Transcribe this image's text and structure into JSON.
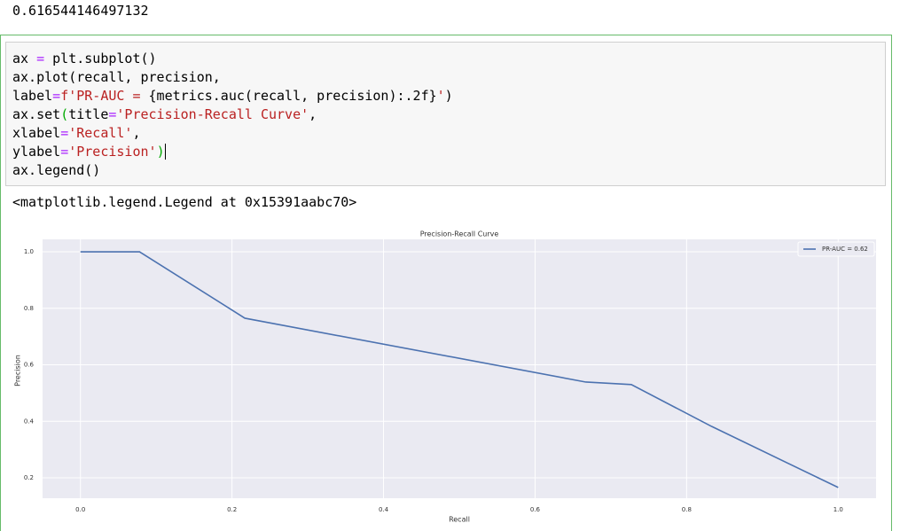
{
  "output_top": "0.616544146497132",
  "code_lines": [
    [
      {
        "text": "ax ",
        "color": "#000000"
      },
      {
        "text": "=",
        "color": "#aa22ff"
      },
      {
        "text": " plt.subplot()",
        "color": "#000000"
      }
    ],
    [
      {
        "text": "ax.plot(recall, precision,",
        "color": "#000000"
      }
    ],
    [
      {
        "text": "label",
        "color": "#000000"
      },
      {
        "text": "=",
        "color": "#aa22ff"
      },
      {
        "text": "f'PR-AUC = ",
        "color": "#ba2121"
      },
      {
        "text": "{metrics.auc(recall, precision):.2f}",
        "color": "#000000"
      },
      {
        "text": "'",
        "color": "#ba2121"
      },
      {
        "text": ")",
        "color": "#000000"
      }
    ],
    [
      {
        "text": "ax.set",
        "color": "#000000"
      },
      {
        "text": "(",
        "color": "#00aa00"
      },
      {
        "text": "title",
        "color": "#000000"
      },
      {
        "text": "=",
        "color": "#aa22ff"
      },
      {
        "text": "'Precision-Recall Curve'",
        "color": "#ba2121"
      },
      {
        "text": ",",
        "color": "#000000"
      }
    ],
    [
      {
        "text": "xlabel",
        "color": "#000000"
      },
      {
        "text": "=",
        "color": "#aa22ff"
      },
      {
        "text": "'Recall'",
        "color": "#ba2121"
      },
      {
        "text": ",",
        "color": "#000000"
      }
    ],
    [
      {
        "text": "ylabel",
        "color": "#000000"
      },
      {
        "text": "=",
        "color": "#aa22ff"
      },
      {
        "text": "'Precision'",
        "color": "#ba2121"
      },
      {
        "text": ")",
        "color": "#00aa00"
      }
    ],
    [
      {
        "text": "ax.legend()",
        "color": "#000000"
      }
    ]
  ],
  "output_repr": "<matplotlib.legend.Legend at 0x15391aabc70>",
  "chart_data": {
    "type": "line",
    "title": "Precision-Recall Curve",
    "x_label": "Recall",
    "y_label": "Precision",
    "x": [
      0,
      0.078,
      0.217,
      0.667,
      0.727,
      0.833,
      1.0
    ],
    "series": [
      {
        "name": "PR-AUC = 0.62",
        "color": "#4c72b0",
        "values": [
          1.0,
          1.0,
          0.765,
          0.539,
          0.53,
          0.382,
          0.166
        ]
      }
    ],
    "xlim": [
      -0.05,
      1.05
    ],
    "ylim": [
      0.128,
      1.044
    ],
    "xticks": [
      {
        "value": 0,
        "label": "0.0"
      },
      0.2,
      0.4,
      0.6,
      0.8,
      {
        "value": 1,
        "label": "1.0"
      }
    ],
    "yticks": [
      0.2,
      0.4,
      0.6,
      0.8,
      {
        "value": 1,
        "label": "1.0"
      }
    ],
    "grid": true,
    "legend": "upper right"
  }
}
